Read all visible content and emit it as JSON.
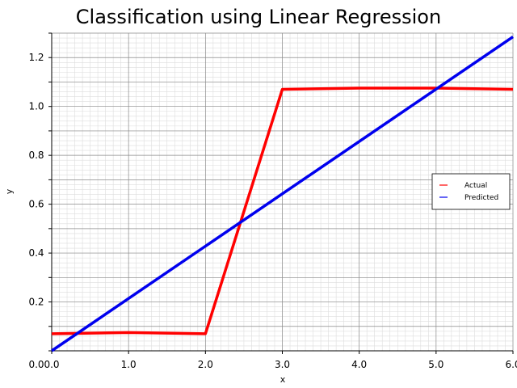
{
  "chart_data": {
    "type": "line",
    "title": "Classification using Linear Regression",
    "xlabel": "x",
    "ylabel": "y",
    "xlim": [
      0,
      6
    ],
    "ylim": [
      0.0,
      1.3
    ],
    "x_ticks": [
      0,
      1,
      2,
      3,
      4,
      5,
      6
    ],
    "x_tick_labels": [
      "0.0",
      "1.0",
      "2.0",
      "3.0",
      "4.0",
      "5.0",
      "6.0"
    ],
    "y_ticks": [
      0.0,
      0.2,
      0.4,
      0.6,
      0.8,
      1.0,
      1.2
    ],
    "y_tick_labels": [
      "0.0",
      "0.2",
      "0.4",
      "0.6",
      "0.8",
      "1.0",
      "1.2"
    ],
    "grid": true,
    "legend_position": "right",
    "series": [
      {
        "name": "Actual",
        "color": "#ff0000",
        "x": [
          0,
          1,
          2,
          3,
          4,
          5,
          6
        ],
        "y": [
          0.07,
          0.075,
          0.07,
          1.07,
          1.075,
          1.075,
          1.07
        ]
      },
      {
        "name": "Predicted",
        "color": "#0000ee",
        "x": [
          0,
          6
        ],
        "y": [
          0.0,
          1.285
        ]
      }
    ]
  }
}
